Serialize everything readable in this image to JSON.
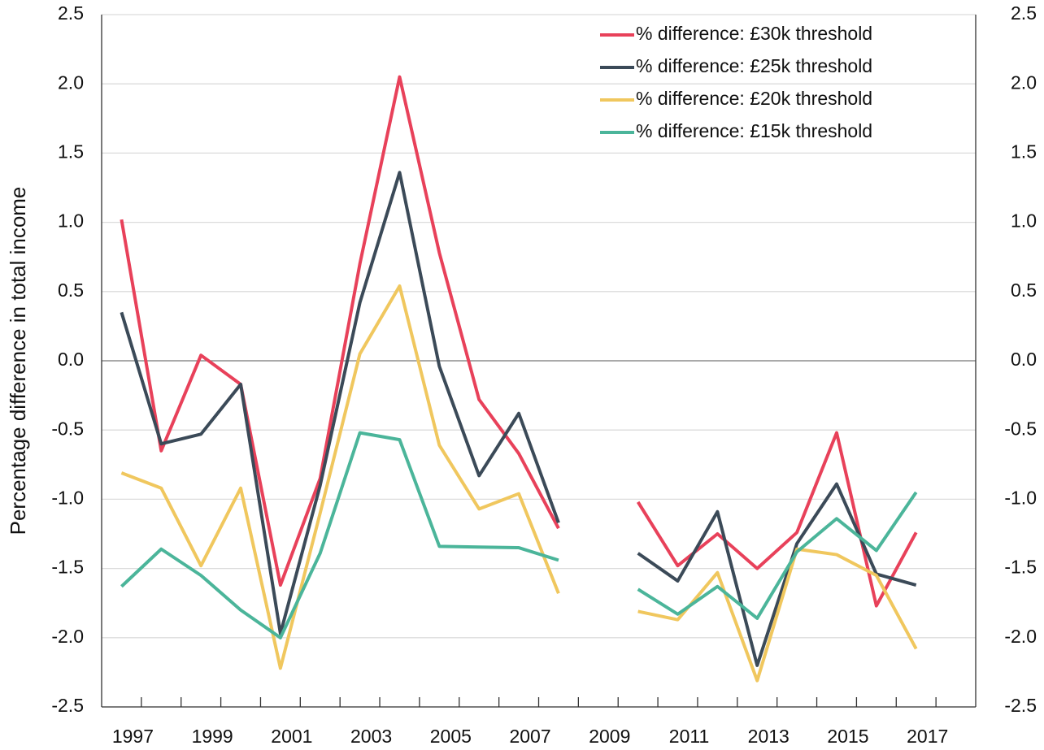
{
  "chart_data": {
    "type": "line",
    "y_label": "Percentage difference in total income",
    "categories": [
      "1997",
      null,
      "1999",
      null,
      "2001",
      null,
      "2003",
      null,
      "2005",
      null,
      "2007",
      null,
      "2009",
      null,
      "2011",
      null,
      "2013",
      null,
      "2015",
      null,
      "2017",
      null
    ],
    "series": [
      {
        "name": "% difference: £30k threshold",
        "color": "#e8415a",
        "values": [
          1.02,
          -0.65,
          0.04,
          -0.17,
          -1.62,
          -0.85,
          0.7,
          2.05,
          0.78,
          -0.28,
          -0.67,
          -1.21,
          null,
          -1.02,
          -1.48,
          -1.25,
          -1.5,
          -1.24,
          -0.52,
          -1.77,
          -1.24,
          null
        ]
      },
      {
        "name": "% difference: £25k threshold",
        "color": "#3b4a58",
        "values": [
          0.35,
          -0.6,
          -0.53,
          -0.17,
          -1.97,
          -0.9,
          0.42,
          1.36,
          -0.04,
          -0.83,
          -0.38,
          -1.17,
          null,
          -1.39,
          -1.59,
          -1.09,
          -2.2,
          -1.32,
          -0.89,
          -1.54,
          -1.62,
          null
        ]
      },
      {
        "name": "% difference: £20k threshold",
        "color": "#f0c75e",
        "values": [
          -0.81,
          -0.92,
          -1.48,
          -0.92,
          -2.22,
          -1.1,
          0.05,
          0.54,
          -0.61,
          -1.07,
          -0.96,
          -1.68,
          null,
          -1.81,
          -1.87,
          -1.53,
          -2.31,
          -1.36,
          -1.4,
          -1.55,
          -2.08,
          null
        ]
      },
      {
        "name": "% difference: £15k threshold",
        "color": "#4bb59a",
        "values": [
          -1.63,
          -1.36,
          -1.55,
          -1.8,
          -2.0,
          -1.39,
          -0.52,
          -0.57,
          -1.34,
          -1.345,
          -1.35,
          -1.44,
          null,
          -1.65,
          -1.83,
          -1.63,
          -1.86,
          -1.38,
          -1.14,
          -1.37,
          -0.95,
          null
        ]
      }
    ],
    "ylim": [
      -2.5,
      2.5
    ],
    "yticks": [
      {
        "value": -2.5,
        "label": "-2.5"
      },
      {
        "value": -2,
        "label": "-2.0"
      },
      {
        "value": -1.5,
        "label": "-1.5"
      },
      {
        "value": -1,
        "label": "-1.0"
      },
      {
        "value": -0.5,
        "label": "-0.5"
      },
      {
        "value": 0,
        "label": "0.0"
      },
      {
        "value": 0.5,
        "label": "0.5"
      },
      {
        "value": 1,
        "label": "1.0"
      },
      {
        "value": 1.5,
        "label": "1.5"
      },
      {
        "value": 2,
        "label": "2.0"
      },
      {
        "value": 2.5,
        "label": "2.5"
      }
    ],
    "y2lim": [
      -2.5,
      2.5
    ],
    "y2ticks": [
      {
        "value": -2.5,
        "label": "-2.5"
      },
      {
        "value": -2,
        "label": "-2.0"
      },
      {
        "value": -1.5,
        "label": "-1.5"
      },
      {
        "value": -1,
        "label": "-1.0"
      },
      {
        "value": -0.5,
        "label": "-0.5"
      },
      {
        "value": 0,
        "label": "0.0"
      },
      {
        "value": 0.5,
        "label": "0.5"
      },
      {
        "value": 1,
        "label": "1.0"
      },
      {
        "value": 1.5,
        "label": "1.5"
      },
      {
        "value": 2,
        "label": "2.0"
      },
      {
        "value": 2.5,
        "label": "2.5"
      }
    ],
    "grid": true,
    "legend": "upper right"
  }
}
